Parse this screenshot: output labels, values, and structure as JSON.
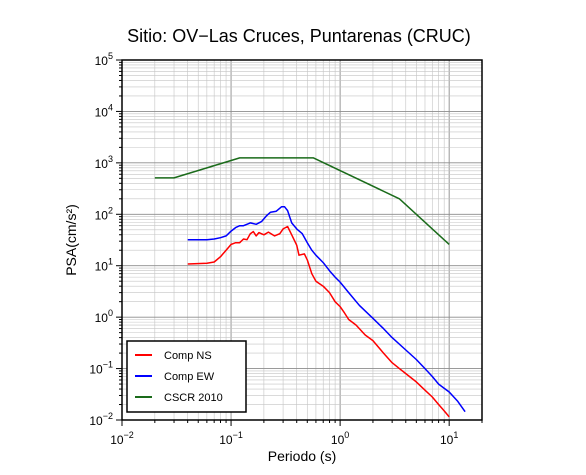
{
  "chart_data": {
    "type": "line",
    "title": "Sitio: OV−Las Cruces, Puntarenas (CRUC)",
    "xlabel": "Periodo (s)",
    "ylabel": "PSA(cm/s²)",
    "xscale": "log",
    "yscale": "log",
    "xlim": [
      0.01,
      20
    ],
    "ylim": [
      0.01,
      100000
    ],
    "x_ticks": [
      {
        "value": 0.01,
        "base": "10",
        "exp": "−2"
      },
      {
        "value": 0.1,
        "base": "10",
        "exp": "−1"
      },
      {
        "value": 1,
        "base": "10",
        "exp": "0"
      },
      {
        "value": 10,
        "base": "10",
        "exp": "1"
      }
    ],
    "y_ticks": [
      {
        "value": 0.01,
        "base": "10",
        "exp": "−2"
      },
      {
        "value": 0.1,
        "base": "10",
        "exp": "−1"
      },
      {
        "value": 1,
        "base": "10",
        "exp": "0"
      },
      {
        "value": 10,
        "base": "10",
        "exp": "1"
      },
      {
        "value": 100,
        "base": "10",
        "exp": "2"
      },
      {
        "value": 1000,
        "base": "10",
        "exp": "3"
      },
      {
        "value": 10000,
        "base": "10",
        "exp": "4"
      },
      {
        "value": 100000,
        "base": "10",
        "exp": "5"
      }
    ],
    "grid": true,
    "legend_position": "bottom-left",
    "series": [
      {
        "name": "Comp NS",
        "color": "#ff0000",
        "points": [
          [
            0.04,
            10.8
          ],
          [
            0.06,
            11.2
          ],
          [
            0.07,
            11.8
          ],
          [
            0.08,
            15
          ],
          [
            0.09,
            20
          ],
          [
            0.1,
            26
          ],
          [
            0.11,
            28
          ],
          [
            0.12,
            28
          ],
          [
            0.13,
            33
          ],
          [
            0.14,
            32
          ],
          [
            0.15,
            42
          ],
          [
            0.16,
            46
          ],
          [
            0.17,
            38
          ],
          [
            0.18,
            44
          ],
          [
            0.2,
            40
          ],
          [
            0.22,
            45
          ],
          [
            0.25,
            38
          ],
          [
            0.28,
            42
          ],
          [
            0.3,
            52
          ],
          [
            0.33,
            58
          ],
          [
            0.36,
            40
          ],
          [
            0.4,
            25
          ],
          [
            0.42,
            16
          ],
          [
            0.47,
            17
          ],
          [
            0.5,
            13
          ],
          [
            0.55,
            7
          ],
          [
            0.6,
            5
          ],
          [
            0.7,
            4
          ],
          [
            0.8,
            3
          ],
          [
            0.9,
            2
          ],
          [
            1,
            1.6
          ],
          [
            1.1,
            1.2
          ],
          [
            1.2,
            0.9
          ],
          [
            1.4,
            0.7
          ],
          [
            1.7,
            0.45
          ],
          [
            2,
            0.35
          ],
          [
            2.5,
            0.2
          ],
          [
            3,
            0.13
          ],
          [
            3.5,
            0.1
          ],
          [
            4,
            0.08
          ],
          [
            5,
            0.055
          ],
          [
            6,
            0.038
          ],
          [
            7,
            0.028
          ],
          [
            8,
            0.02
          ],
          [
            9,
            0.015
          ],
          [
            10,
            0.0115
          ]
        ]
      },
      {
        "name": "Comp EW",
        "color": "#0000ff",
        "points": [
          [
            0.04,
            32
          ],
          [
            0.06,
            32
          ],
          [
            0.07,
            33
          ],
          [
            0.08,
            35
          ],
          [
            0.09,
            38
          ],
          [
            0.1,
            47
          ],
          [
            0.11,
            55
          ],
          [
            0.12,
            60
          ],
          [
            0.13,
            60
          ],
          [
            0.15,
            68
          ],
          [
            0.17,
            64
          ],
          [
            0.19,
            72
          ],
          [
            0.21,
            92
          ],
          [
            0.23,
            110
          ],
          [
            0.26,
            115
          ],
          [
            0.29,
            140
          ],
          [
            0.31,
            140
          ],
          [
            0.33,
            118
          ],
          [
            0.36,
            68
          ],
          [
            0.4,
            52
          ],
          [
            0.45,
            42
          ],
          [
            0.5,
            28
          ],
          [
            0.55,
            20
          ],
          [
            0.6,
            16
          ],
          [
            0.7,
            11.5
          ],
          [
            0.8,
            8
          ],
          [
            0.9,
            6
          ],
          [
            1,
            4.8
          ],
          [
            1.2,
            3
          ],
          [
            1.5,
            1.7
          ],
          [
            2,
            0.95
          ],
          [
            2.5,
            0.6
          ],
          [
            3,
            0.4
          ],
          [
            4,
            0.23
          ],
          [
            5,
            0.15
          ],
          [
            6,
            0.1
          ],
          [
            7,
            0.07
          ],
          [
            8,
            0.05
          ],
          [
            10,
            0.035
          ],
          [
            12,
            0.023
          ],
          [
            14,
            0.0145
          ]
        ]
      },
      {
        "name": "CSCR 2010",
        "color": "#1a6b1a",
        "points": [
          [
            0.02,
            510
          ],
          [
            0.03,
            510
          ],
          [
            0.12,
            1250
          ],
          [
            0.57,
            1250
          ],
          [
            3.5,
            200
          ],
          [
            10,
            26
          ]
        ]
      }
    ]
  }
}
